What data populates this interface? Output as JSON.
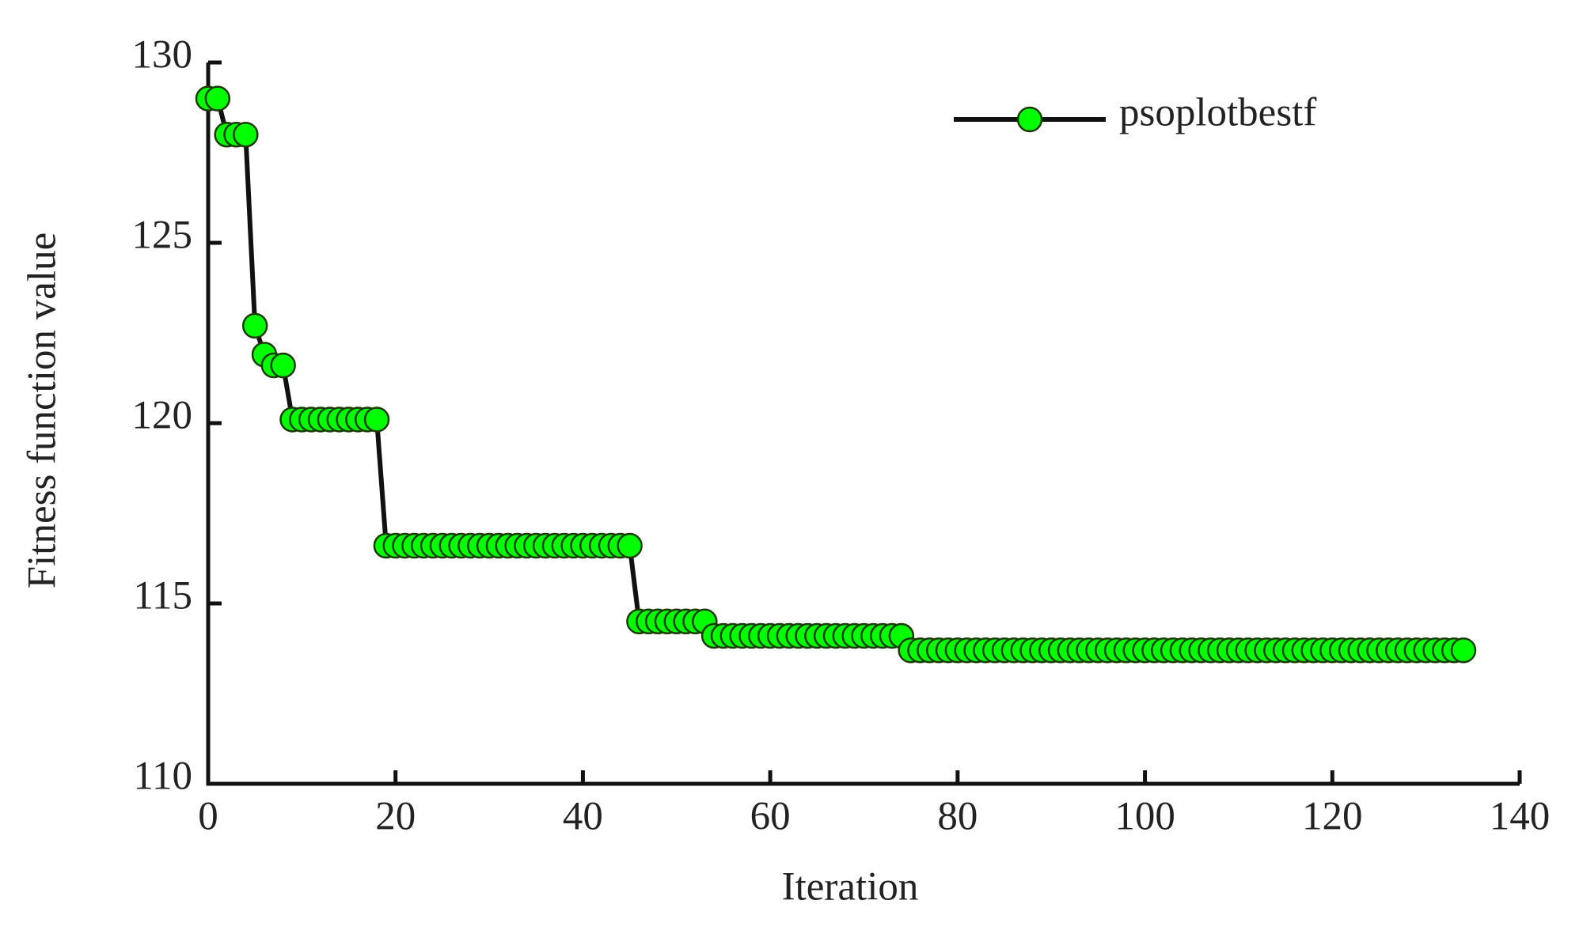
{
  "chart_data": {
    "type": "line",
    "xlabel": "Iteration",
    "ylabel": "Fitness function value",
    "x": [
      0,
      1,
      2,
      3,
      4,
      5,
      6,
      7,
      8,
      9,
      10,
      11,
      12,
      13,
      14,
      15,
      16,
      17,
      18,
      19,
      20,
      21,
      22,
      23,
      24,
      25,
      26,
      27,
      28,
      29,
      30,
      31,
      32,
      33,
      34,
      35,
      36,
      37,
      38,
      39,
      40,
      41,
      42,
      43,
      44,
      45,
      46,
      47,
      48,
      49,
      50,
      51,
      52,
      53,
      54,
      55,
      56,
      57,
      58,
      59,
      60,
      61,
      62,
      63,
      64,
      65,
      66,
      67,
      68,
      69,
      70,
      71,
      72,
      73,
      74,
      75,
      76,
      77,
      78,
      79,
      80,
      81,
      82,
      83,
      84,
      85,
      86,
      87,
      88,
      89,
      90,
      91,
      92,
      93,
      94,
      95,
      96,
      97,
      98,
      99,
      100,
      101,
      102,
      103,
      104,
      105,
      106,
      107,
      108,
      109,
      110,
      111,
      112,
      113,
      114,
      115,
      116,
      117,
      118,
      119,
      120,
      121,
      122,
      123,
      124,
      125,
      126,
      127,
      128,
      129,
      130,
      131,
      132,
      133,
      134
    ],
    "series": [
      {
        "name": "psoplotbestf",
        "color": "#00ff00",
        "line_color": "#111111",
        "values": [
          129,
          129,
          128,
          128,
          128,
          122.7,
          121.9,
          121.6,
          121.6,
          120.1,
          120.1,
          120.1,
          120.1,
          120.1,
          120.1,
          120.1,
          120.1,
          120.1,
          120.1,
          116.6,
          116.6,
          116.6,
          116.6,
          116.6,
          116.6,
          116.6,
          116.6,
          116.6,
          116.6,
          116.6,
          116.6,
          116.6,
          116.6,
          116.6,
          116.6,
          116.6,
          116.6,
          116.6,
          116.6,
          116.6,
          116.6,
          116.6,
          116.6,
          116.6,
          116.6,
          116.6,
          114.5,
          114.5,
          114.5,
          114.5,
          114.5,
          114.5,
          114.5,
          114.5,
          114.1,
          114.1,
          114.1,
          114.1,
          114.1,
          114.1,
          114.1,
          114.1,
          114.1,
          114.1,
          114.1,
          114.1,
          114.1,
          114.1,
          114.1,
          114.1,
          114.1,
          114.1,
          114.1,
          114.1,
          114.1,
          113.7,
          113.7,
          113.7,
          113.7,
          113.7,
          113.7,
          113.7,
          113.7,
          113.7,
          113.7,
          113.7,
          113.7,
          113.7,
          113.7,
          113.7,
          113.7,
          113.7,
          113.7,
          113.7,
          113.7,
          113.7,
          113.7,
          113.7,
          113.7,
          113.7,
          113.7,
          113.7,
          113.7,
          113.7,
          113.7,
          113.7,
          113.7,
          113.7,
          113.7,
          113.7,
          113.7,
          113.7,
          113.7,
          113.7,
          113.7,
          113.7,
          113.7,
          113.7,
          113.7,
          113.7,
          113.7,
          113.7,
          113.7,
          113.7,
          113.7,
          113.7,
          113.7,
          113.7,
          113.7,
          113.7,
          113.7,
          113.7,
          113.7,
          113.7,
          113.7
        ]
      }
    ],
    "xlim": [
      0,
      140
    ],
    "xticks": [
      0,
      20,
      40,
      60,
      80,
      100,
      120,
      140
    ],
    "ylim": [
      110,
      130
    ],
    "yticks": [
      110,
      115,
      120,
      125,
      130
    ],
    "legend": "upper right",
    "grid": false
  }
}
